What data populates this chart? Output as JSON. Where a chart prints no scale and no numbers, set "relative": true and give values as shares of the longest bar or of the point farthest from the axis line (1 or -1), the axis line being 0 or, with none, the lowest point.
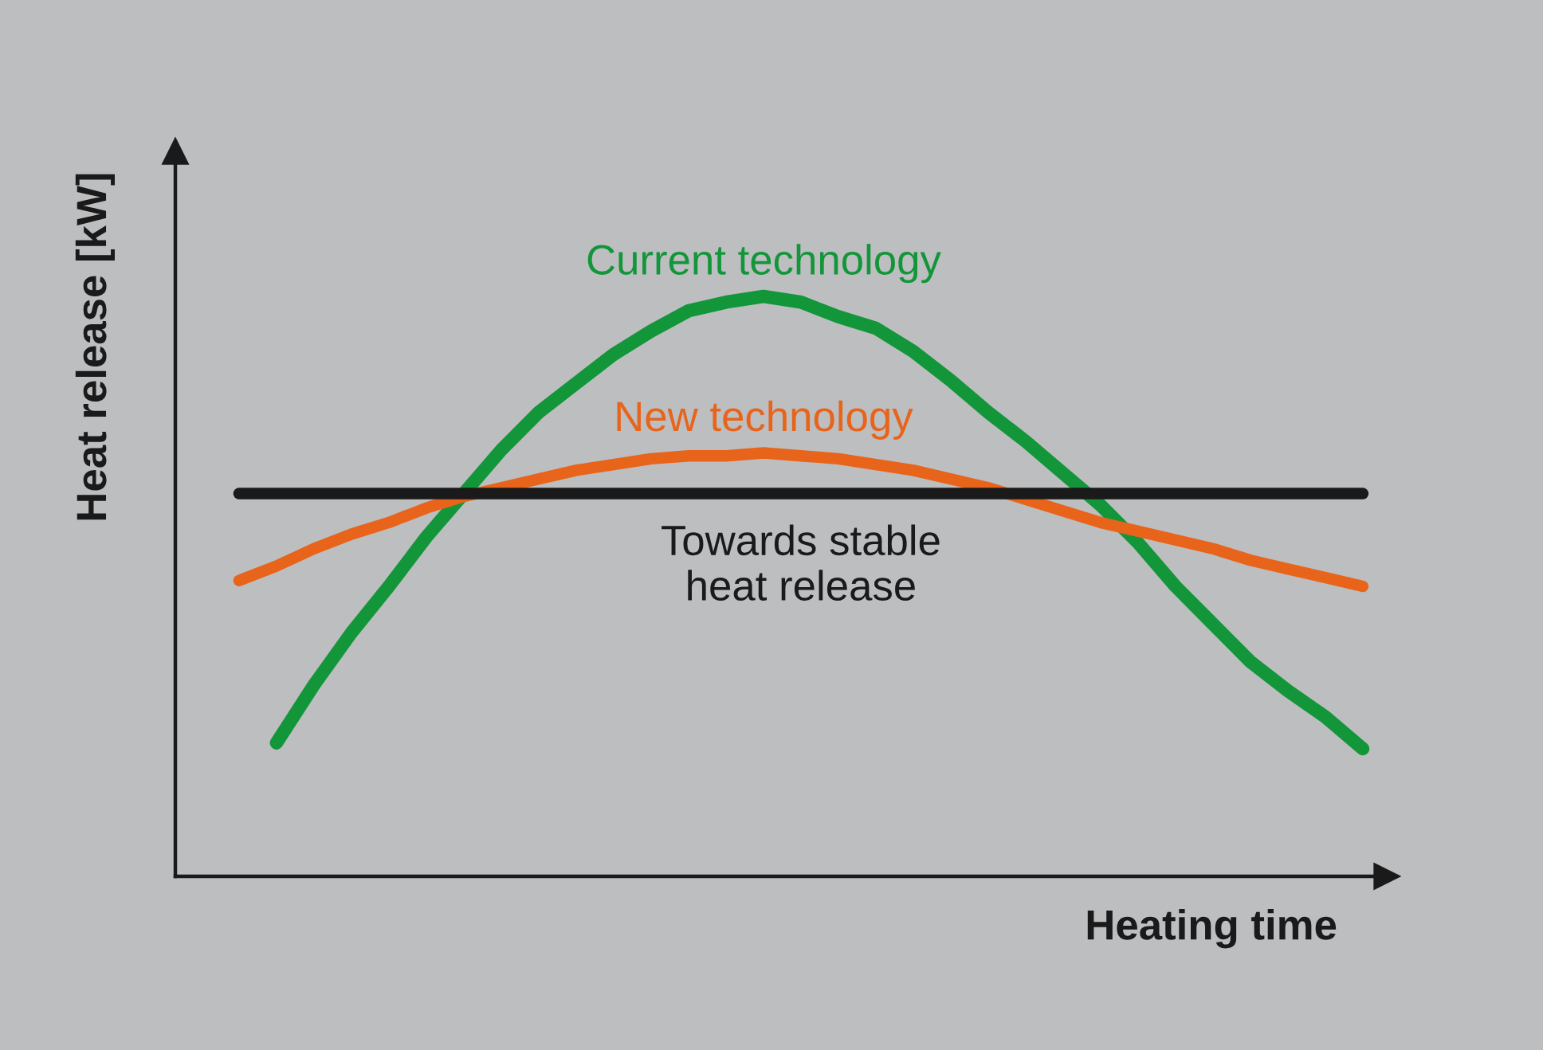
{
  "chart_data": {
    "type": "line",
    "relative": true,
    "tick_labels": false,
    "xlabel": "Heating time",
    "ylabel": "Heat release [kW]",
    "categories": [
      null,
      null,
      null,
      null,
      null,
      null,
      null,
      null,
      null,
      null,
      null,
      null,
      null,
      null,
      null,
      null,
      null,
      null,
      null,
      null,
      null,
      null,
      null,
      null,
      null,
      null,
      null,
      null,
      null,
      null,
      null
    ],
    "series": [
      {
        "name": "Current technology",
        "color": "#139639",
        "values": [
          null,
          0.23,
          0.33,
          0.42,
          0.5,
          0.585,
          0.66,
          0.735,
          0.8,
          0.85,
          0.9,
          0.94,
          0.975,
          0.99,
          1.0,
          0.99,
          0.965,
          0.945,
          0.905,
          0.855,
          0.8,
          0.75,
          0.695,
          0.64,
          0.575,
          0.5,
          0.435,
          0.37,
          0.32,
          0.275,
          0.22
        ]
      },
      {
        "name": "New technology",
        "color": "#e8641b",
        "values": [
          0.51,
          0.535,
          0.565,
          0.59,
          0.61,
          0.635,
          0.655,
          0.67,
          0.685,
          0.7,
          0.71,
          0.72,
          0.725,
          0.725,
          0.73,
          0.725,
          0.72,
          0.71,
          0.7,
          0.685,
          0.67,
          0.65,
          0.63,
          0.61,
          0.595,
          0.58,
          0.565,
          0.545,
          0.53,
          0.515,
          0.5
        ]
      },
      {
        "name": "Towards stable\nheat release",
        "color": "#1a1a1a",
        "values": [
          0.66,
          0.66,
          0.66,
          0.66,
          0.66,
          0.66,
          0.66,
          0.66,
          0.66,
          0.66,
          0.66,
          0.66,
          0.66,
          0.66,
          0.66,
          0.66,
          0.66,
          0.66,
          0.66,
          0.66,
          0.66,
          0.66,
          0.66,
          0.66,
          0.66,
          0.66,
          0.66,
          0.66,
          0.66,
          0.66,
          0.66
        ]
      }
    ]
  }
}
